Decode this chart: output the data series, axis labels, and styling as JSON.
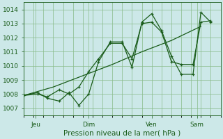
{
  "bg_color": "#cce8e8",
  "grid_color": "#88bb88",
  "line_color": "#1a5c1a",
  "tick_color": "#1a5c1a",
  "xlabel": "Pression niveau de la mer( hPa )",
  "ylim": [
    1006.5,
    1014.5
  ],
  "yticks": [
    1007,
    1008,
    1009,
    1010,
    1011,
    1012,
    1013,
    1014
  ],
  "xlim": [
    0,
    10
  ],
  "x_ticks_pos": [
    0.6,
    3.3,
    6.5,
    8.8
  ],
  "x_tick_labels": [
    "Jeu",
    "Dim",
    "Ven",
    "Sam"
  ],
  "line1_x": [
    0.0,
    1.5,
    3.0,
    4.5,
    6.0,
    7.5,
    9.0
  ],
  "line1_y": [
    1007.9,
    1008.5,
    1009.3,
    1010.1,
    1011.0,
    1011.8,
    1012.8
  ],
  "line2_x": [
    0.0,
    0.7,
    1.2,
    1.8,
    2.3,
    2.8,
    3.3,
    3.8,
    4.4,
    5.0,
    5.5,
    6.0,
    6.5,
    7.0,
    7.5,
    8.0,
    8.6,
    9.0,
    9.5
  ],
  "line2_y": [
    1007.9,
    1008.1,
    1007.7,
    1007.5,
    1008.1,
    1007.2,
    1008.0,
    1010.3,
    1011.7,
    1011.7,
    1009.9,
    1013.1,
    1013.7,
    1012.5,
    1010.7,
    1009.4,
    1009.4,
    1013.8,
    1013.1
  ],
  "line3_x": [
    0.0,
    0.7,
    1.2,
    1.8,
    2.3,
    2.8,
    3.3,
    3.8,
    4.4,
    5.0,
    5.5,
    6.0,
    6.5,
    7.0,
    7.5,
    8.0,
    8.6,
    9.0,
    9.5
  ],
  "line3_y": [
    1007.9,
    1008.0,
    1007.8,
    1008.3,
    1008.0,
    1008.5,
    1009.6,
    1010.5,
    1011.6,
    1011.6,
    1010.5,
    1013.0,
    1013.1,
    1012.4,
    1010.3,
    1010.1,
    1010.1,
    1013.1,
    1013.2
  ],
  "tick_fontsize": 6.5,
  "xlabel_fontsize": 7.5
}
